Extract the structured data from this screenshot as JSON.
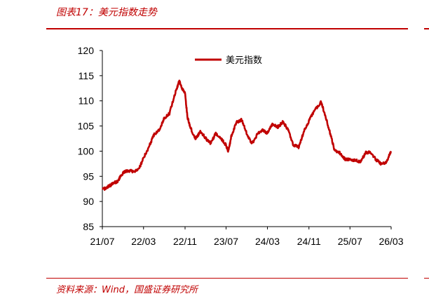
{
  "figure_title": "图表17：美元指数走势",
  "source_text": "资料来源：Wind，国盛证券研究所",
  "colors": {
    "accent": "#c00000",
    "series": "#c00000"
  },
  "chart_data": {
    "type": "line",
    "title": "",
    "xlabel": "",
    "ylabel": "",
    "ylim": [
      85,
      120
    ],
    "yticks": [
      85,
      90,
      95,
      100,
      105,
      110,
      115,
      120
    ],
    "xlim": [
      "2021-07",
      "2026-03"
    ],
    "xticks": [
      {
        "date": "2021-07",
        "label": "21/07"
      },
      {
        "date": "2022-03",
        "label": "22/03"
      },
      {
        "date": "2022-11",
        "label": "22/11"
      },
      {
        "date": "2023-07",
        "label": "23/07"
      },
      {
        "date": "2024-03",
        "label": "24/03"
      },
      {
        "date": "2024-11",
        "label": "24/11"
      },
      {
        "date": "2025-07",
        "label": "25/07"
      },
      {
        "date": "2026-03",
        "label": "26/03"
      }
    ],
    "legend": {
      "position": "top-center"
    },
    "grid": false,
    "series": [
      {
        "name": "美元指数",
        "x": [
          "2021-07-01",
          "2021-08-01",
          "2021-09-01",
          "2021-10-01",
          "2021-11-01",
          "2021-12-01",
          "2022-01-01",
          "2022-02-01",
          "2022-03-01",
          "2022-04-01",
          "2022-05-01",
          "2022-06-01",
          "2022-07-01",
          "2022-08-01",
          "2022-09-01",
          "2022-09-28",
          "2022-10-15",
          "2022-11-01",
          "2022-11-15",
          "2022-12-01",
          "2023-01-01",
          "2023-02-01",
          "2023-03-01",
          "2023-04-01",
          "2023-05-01",
          "2023-06-01",
          "2023-07-01",
          "2023-07-15",
          "2023-08-01",
          "2023-09-01",
          "2023-10-01",
          "2023-11-01",
          "2023-12-01",
          "2024-01-01",
          "2024-02-01",
          "2024-03-01",
          "2024-04-01",
          "2024-05-01",
          "2024-06-01",
          "2024-07-01",
          "2024-08-01",
          "2024-09-01",
          "2024-10-01",
          "2024-11-01",
          "2024-12-01",
          "2025-01-13",
          "2025-02-01",
          "2025-03-01",
          "2025-04-01",
          "2025-05-01",
          "2025-06-01",
          "2025-07-01",
          "2025-08-01",
          "2025-09-01",
          "2025-10-01",
          "2025-11-01",
          "2025-12-01",
          "2026-01-01",
          "2026-02-01",
          "2026-03-01"
        ],
        "values": [
          92.3,
          92.9,
          93.5,
          94.1,
          95.8,
          96.1,
          96.0,
          96.4,
          98.6,
          100.8,
          103.2,
          104.2,
          106.5,
          107.5,
          111.2,
          114.0,
          112.5,
          111.5,
          106.8,
          104.8,
          102.5,
          103.9,
          102.6,
          101.5,
          103.5,
          102.5,
          101.2,
          99.9,
          103.0,
          105.8,
          106.2,
          103.4,
          101.5,
          103.3,
          104.2,
          103.6,
          105.5,
          104.8,
          105.8,
          104.3,
          101.2,
          100.8,
          103.8,
          106.0,
          108.0,
          109.8,
          107.5,
          104.2,
          100.2,
          99.7,
          98.4,
          98.3,
          98.2,
          97.8,
          99.7,
          99.8,
          98.3,
          97.5,
          97.8,
          100.0
        ]
      }
    ]
  }
}
